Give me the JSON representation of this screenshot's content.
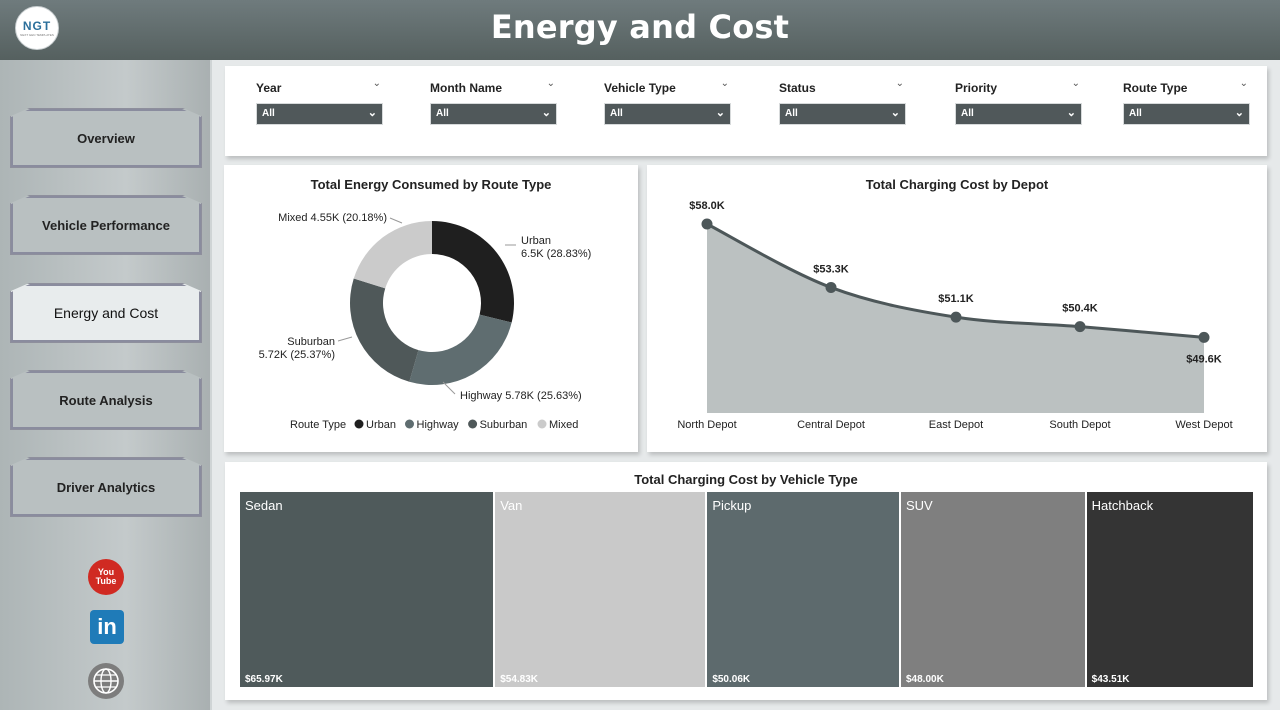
{
  "header": {
    "title": "Energy and Cost",
    "logo_text": "NGT",
    "logo_sub": "NEXT GEN TEMPLATES"
  },
  "sidebar": {
    "items": [
      {
        "label": "Overview"
      },
      {
        "label": "Vehicle Performance"
      },
      {
        "label": "Energy and Cost",
        "active": true
      },
      {
        "label": "Route Analysis"
      },
      {
        "label": "Driver Analytics"
      }
    ],
    "social": {
      "youtube": "youtube-icon",
      "linkedin": "linkedin-icon",
      "web": "globe-icon"
    }
  },
  "filters": [
    {
      "label": "Year",
      "value": "All"
    },
    {
      "label": "Month Name",
      "value": "All"
    },
    {
      "label": "Vehicle Type",
      "value": "All"
    },
    {
      "label": "Status",
      "value": "All"
    },
    {
      "label": "Priority",
      "value": "All"
    },
    {
      "label": "Route Type",
      "value": "All"
    }
  ],
  "colors": {
    "header": "#5f6a6b",
    "urban": "#1f1f1f",
    "highway": "#5f6d70",
    "suburban": "#4f5859",
    "mixed": "#cbcbcb",
    "area": "#bbc1c1",
    "line": "#4d5759"
  },
  "chart_data": [
    {
      "type": "pie",
      "title": "Total Energy Consumed by Route Type",
      "legend_title": "Route Type",
      "legend_position": "bottom",
      "categories": [
        "Urban",
        "Highway",
        "Suburban",
        "Mixed"
      ],
      "values": [
        6.5,
        5.78,
        5.72,
        4.55
      ],
      "value_labels": [
        "6.5K",
        "5.78K",
        "5.72K",
        "4.55K"
      ],
      "percent_labels": [
        "28.83%",
        "25.63%",
        "25.37%",
        "20.18%"
      ]
    },
    {
      "type": "area",
      "title": "Total Charging Cost by Depot",
      "categories": [
        "North Depot",
        "Central Depot",
        "East Depot",
        "South Depot",
        "West Depot"
      ],
      "values": [
        58.0,
        53.3,
        51.1,
        50.4,
        49.6
      ],
      "value_labels": [
        "$58.0K",
        "$53.3K",
        "$51.1K",
        "$50.4K",
        "$49.6K"
      ],
      "ylim": [
        44,
        60
      ]
    },
    {
      "type": "treemap",
      "title": "Total Charging Cost by Vehicle Type",
      "categories": [
        "Sedan",
        "Van",
        "Pickup",
        "SUV",
        "Hatchback"
      ],
      "values": [
        65.97,
        54.83,
        50.06,
        48.0,
        43.51
      ],
      "value_labels": [
        "$65.97K",
        "$54.83K",
        "$50.06K",
        "$48.00K",
        "$43.51K"
      ]
    }
  ]
}
